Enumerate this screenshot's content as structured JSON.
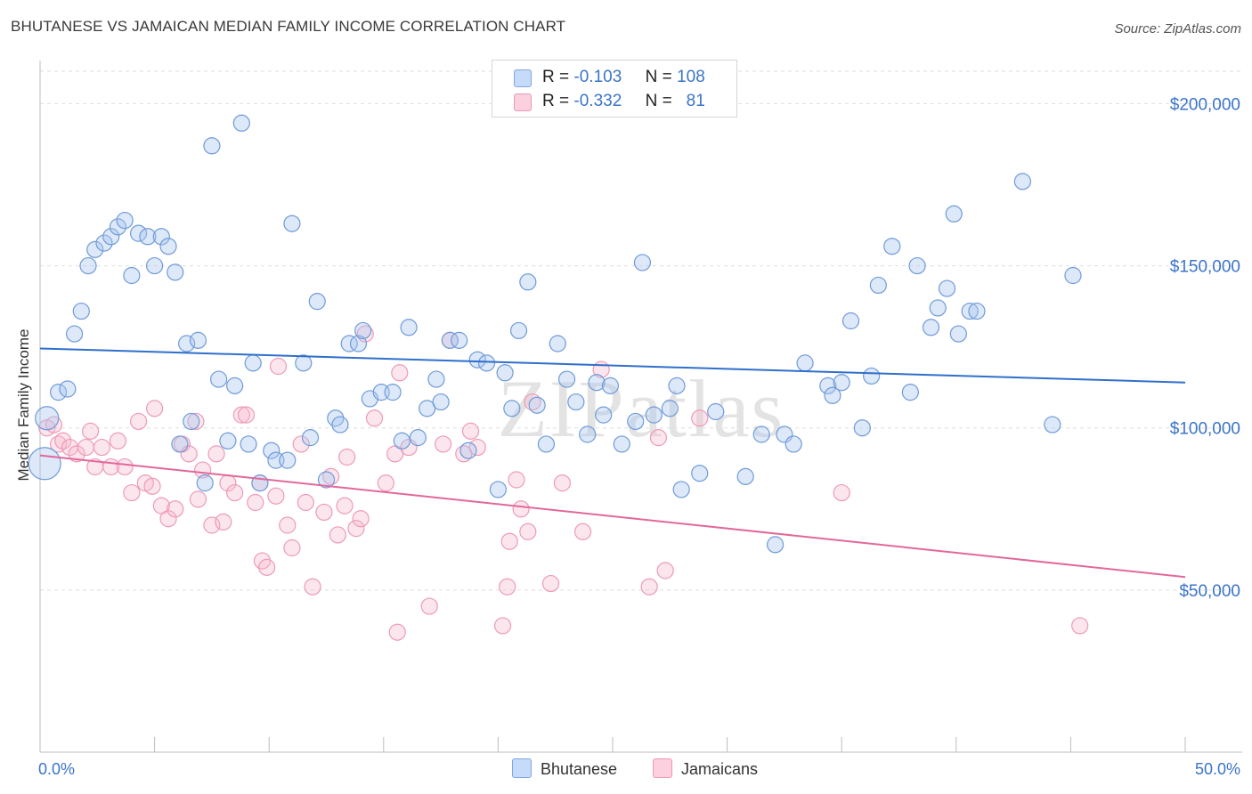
{
  "header": {
    "title": "BHUTANESE VS JAMAICAN MEDIAN FAMILY INCOME CORRELATION CHART",
    "source": "Source: ZipAtlas.com"
  },
  "watermark": "ZIPatlas",
  "colors": {
    "blue": "#3a74c9",
    "pink": "#e8709a",
    "blue_fill": "#a9c6ee",
    "pink_fill": "#f5b8cb"
  },
  "legend_top": {
    "rows": [
      {
        "r_label": "R =",
        "r_value": "-0.103",
        "n_label": "N =",
        "n_value": "108"
      },
      {
        "r_label": "R =",
        "r_value": "-0.332",
        "n_label": "N =",
        "n_value": "81"
      }
    ]
  },
  "chart_data": {
    "type": "scatter",
    "ylabel": "Median Family Income",
    "xlabel": "",
    "xlim": [
      0,
      50
    ],
    "ylim": [
      0,
      210000
    ],
    "x_tick_labels": [
      "0.0%",
      "50.0%"
    ],
    "y_tick_labels": [
      "$200,000",
      "$150,000",
      "$100,000",
      "$50,000"
    ],
    "y_ticks": [
      200000,
      150000,
      100000,
      50000
    ],
    "grid": true,
    "legend": "bottom-center",
    "series": [
      {
        "name": "Bhutanese",
        "color": "#3a74c9",
        "trend": {
          "x": [
            0,
            50
          ],
          "y": [
            124500,
            114000
          ]
        },
        "points": [
          [
            0.2,
            89000
          ],
          [
            0.3,
            103000
          ],
          [
            0.8,
            111000
          ],
          [
            1.2,
            112000
          ],
          [
            1.5,
            129000
          ],
          [
            1.8,
            136000
          ],
          [
            2.1,
            150000
          ],
          [
            2.4,
            155000
          ],
          [
            2.8,
            157000
          ],
          [
            3.1,
            159000
          ],
          [
            3.4,
            162000
          ],
          [
            3.7,
            164000
          ],
          [
            4.0,
            147000
          ],
          [
            4.3,
            160000
          ],
          [
            4.7,
            159000
          ],
          [
            5.0,
            150000
          ],
          [
            5.3,
            159000
          ],
          [
            5.6,
            156000
          ],
          [
            5.9,
            148000
          ],
          [
            6.1,
            95000
          ],
          [
            6.4,
            126000
          ],
          [
            6.6,
            102000
          ],
          [
            6.9,
            127000
          ],
          [
            7.2,
            83000
          ],
          [
            7.5,
            187000
          ],
          [
            7.8,
            115000
          ],
          [
            8.2,
            96000
          ],
          [
            8.5,
            113000
          ],
          [
            8.8,
            194000
          ],
          [
            9.1,
            95000
          ],
          [
            9.3,
            120000
          ],
          [
            9.6,
            83000
          ],
          [
            10.1,
            93000
          ],
          [
            10.3,
            90000
          ],
          [
            10.8,
            90000
          ],
          [
            11.0,
            163000
          ],
          [
            11.5,
            120000
          ],
          [
            11.8,
            97000
          ],
          [
            12.1,
            139000
          ],
          [
            12.5,
            84000
          ],
          [
            12.9,
            103000
          ],
          [
            13.1,
            101000
          ],
          [
            13.5,
            126000
          ],
          [
            13.9,
            126000
          ],
          [
            14.1,
            130000
          ],
          [
            14.4,
            109000
          ],
          [
            14.9,
            111000
          ],
          [
            15.4,
            111000
          ],
          [
            15.8,
            96000
          ],
          [
            16.1,
            131000
          ],
          [
            16.5,
            97000
          ],
          [
            16.9,
            106000
          ],
          [
            17.3,
            115000
          ],
          [
            17.5,
            108000
          ],
          [
            17.9,
            127000
          ],
          [
            18.3,
            127000
          ],
          [
            18.7,
            93000
          ],
          [
            19.1,
            121000
          ],
          [
            19.5,
            120000
          ],
          [
            20.0,
            81000
          ],
          [
            20.3,
            117000
          ],
          [
            20.6,
            106000
          ],
          [
            20.9,
            130000
          ],
          [
            21.3,
            145000
          ],
          [
            21.7,
            107000
          ],
          [
            22.1,
            95000
          ],
          [
            22.6,
            126000
          ],
          [
            23.0,
            115000
          ],
          [
            23.4,
            108000
          ],
          [
            23.9,
            98000
          ],
          [
            24.3,
            114000
          ],
          [
            24.6,
            104000
          ],
          [
            24.9,
            113000
          ],
          [
            25.4,
            95000
          ],
          [
            26.0,
            102000
          ],
          [
            26.3,
            151000
          ],
          [
            26.8,
            104000
          ],
          [
            27.5,
            106000
          ],
          [
            27.8,
            113000
          ],
          [
            28.0,
            81000
          ],
          [
            28.8,
            86000
          ],
          [
            29.5,
            105000
          ],
          [
            30.8,
            85000
          ],
          [
            31.5,
            98000
          ],
          [
            32.1,
            64000
          ],
          [
            32.5,
            98000
          ],
          [
            32.9,
            95000
          ],
          [
            33.4,
            120000
          ],
          [
            34.4,
            113000
          ],
          [
            34.6,
            110000
          ],
          [
            35.0,
            114000
          ],
          [
            35.4,
            133000
          ],
          [
            35.9,
            100000
          ],
          [
            36.3,
            116000
          ],
          [
            36.6,
            144000
          ],
          [
            37.2,
            156000
          ],
          [
            38.0,
            111000
          ],
          [
            38.3,
            150000
          ],
          [
            38.9,
            131000
          ],
          [
            39.2,
            137000
          ],
          [
            39.6,
            143000
          ],
          [
            39.9,
            166000
          ],
          [
            40.1,
            129000
          ],
          [
            40.6,
            136000
          ],
          [
            40.9,
            136000
          ],
          [
            42.9,
            176000
          ],
          [
            44.2,
            101000
          ],
          [
            45.1,
            147000
          ]
        ]
      },
      {
        "name": "Jamaicans",
        "color": "#e8709a",
        "trend": {
          "x": [
            0,
            50
          ],
          "y": [
            91500,
            54000
          ]
        },
        "points": [
          [
            0.3,
            100000
          ],
          [
            0.6,
            101000
          ],
          [
            0.8,
            95000
          ],
          [
            1.0,
            96000
          ],
          [
            1.3,
            94000
          ],
          [
            1.6,
            92000
          ],
          [
            2.0,
            94000
          ],
          [
            2.2,
            99000
          ],
          [
            2.4,
            88000
          ],
          [
            2.7,
            94000
          ],
          [
            3.1,
            88000
          ],
          [
            3.4,
            96000
          ],
          [
            3.7,
            88000
          ],
          [
            4.0,
            80000
          ],
          [
            4.3,
            102000
          ],
          [
            4.6,
            83000
          ],
          [
            4.9,
            82000
          ],
          [
            5.0,
            106000
          ],
          [
            5.3,
            76000
          ],
          [
            5.6,
            72000
          ],
          [
            5.9,
            75000
          ],
          [
            6.2,
            95000
          ],
          [
            6.5,
            92000
          ],
          [
            6.8,
            102000
          ],
          [
            6.9,
            78000
          ],
          [
            7.1,
            87000
          ],
          [
            7.5,
            70000
          ],
          [
            7.7,
            92000
          ],
          [
            8.0,
            71000
          ],
          [
            8.2,
            83000
          ],
          [
            8.5,
            80000
          ],
          [
            8.8,
            104000
          ],
          [
            9.0,
            104000
          ],
          [
            9.4,
            77000
          ],
          [
            9.6,
            83000
          ],
          [
            9.7,
            59000
          ],
          [
            9.9,
            57000
          ],
          [
            10.3,
            79000
          ],
          [
            10.4,
            119000
          ],
          [
            10.8,
            70000
          ],
          [
            11.0,
            63000
          ],
          [
            11.4,
            95000
          ],
          [
            11.6,
            77000
          ],
          [
            11.9,
            51000
          ],
          [
            12.4,
            74000
          ],
          [
            12.7,
            85000
          ],
          [
            13.0,
            67000
          ],
          [
            13.3,
            76000
          ],
          [
            13.4,
            91000
          ],
          [
            13.8,
            69000
          ],
          [
            14.0,
            72000
          ],
          [
            14.2,
            129000
          ],
          [
            14.6,
            103000
          ],
          [
            15.1,
            83000
          ],
          [
            15.5,
            92000
          ],
          [
            15.6,
            37000
          ],
          [
            15.7,
            117000
          ],
          [
            16.1,
            94000
          ],
          [
            17.0,
            45000
          ],
          [
            17.6,
            95000
          ],
          [
            17.9,
            127000
          ],
          [
            18.5,
            92000
          ],
          [
            18.8,
            99000
          ],
          [
            19.1,
            94000
          ],
          [
            20.2,
            39000
          ],
          [
            20.4,
            51000
          ],
          [
            20.5,
            65000
          ],
          [
            20.8,
            84000
          ],
          [
            21.0,
            75000
          ],
          [
            21.3,
            68000
          ],
          [
            21.5,
            108000
          ],
          [
            22.3,
            52000
          ],
          [
            22.8,
            83000
          ],
          [
            23.7,
            68000
          ],
          [
            24.5,
            118000
          ],
          [
            26.6,
            51000
          ],
          [
            27.0,
            97000
          ],
          [
            27.3,
            56000
          ],
          [
            28.8,
            103000
          ],
          [
            35.0,
            80000
          ],
          [
            45.4,
            39000
          ]
        ]
      }
    ]
  },
  "legend_bottom": {
    "items": [
      "Bhutanese",
      "Jamaicans"
    ]
  }
}
